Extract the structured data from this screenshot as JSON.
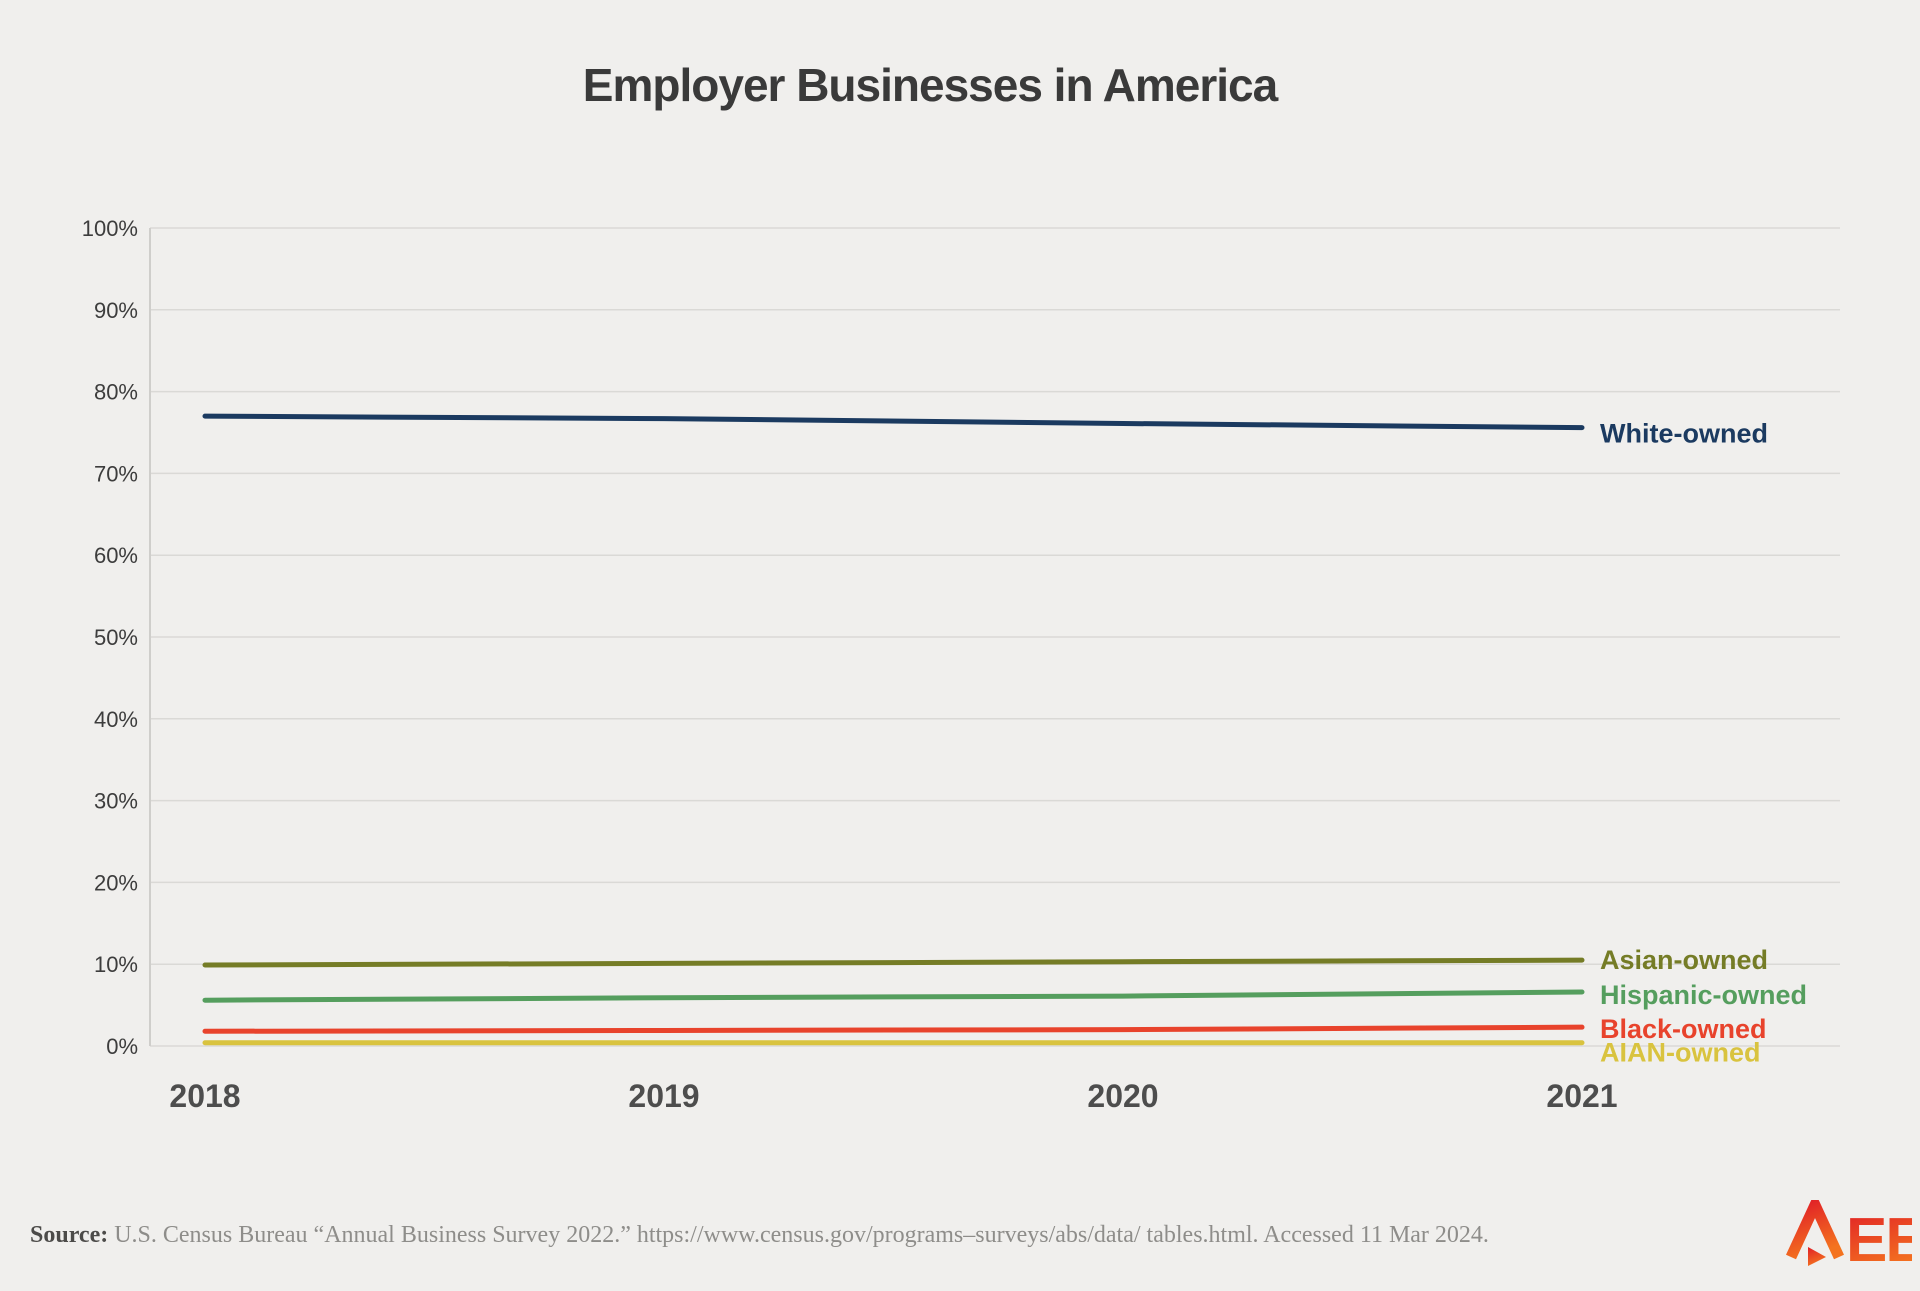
{
  "title": "Employer Businesses in America",
  "source": {
    "label": "Source:",
    "text": " U.S. Census Bureau “Annual Business Survey 2022.” https://www.census.gov/programs–surveys/abs/data/ tables.html. Accessed 11 Mar 2024."
  },
  "logo": {
    "text": "EE",
    "name": "AEE",
    "color_top": "#e01e27",
    "color_bottom": "#f4731f"
  },
  "chart_data": {
    "type": "line",
    "x": [
      2018,
      2019,
      2020,
      2021
    ],
    "x_labels": [
      "2018",
      "2019",
      "2020",
      "2021"
    ],
    "y_ticks": [
      "0%",
      "10%",
      "20%",
      "30%",
      "40%",
      "50%",
      "60%",
      "70%",
      "80%",
      "90%",
      "100%"
    ],
    "ylim": [
      0,
      100
    ],
    "ylabel": "",
    "xlabel": "",
    "grid": true,
    "legend_position": "right-of-line-end",
    "series": [
      {
        "name": "White-owned",
        "color": "#1b3a60",
        "values": [
          77.0,
          76.7,
          76.1,
          75.6
        ]
      },
      {
        "name": "Asian-owned",
        "color": "#757c26",
        "values": [
          9.9,
          10.1,
          10.3,
          10.5
        ]
      },
      {
        "name": "Hispanic-owned",
        "color": "#559e5e",
        "values": [
          5.6,
          5.9,
          6.1,
          6.6
        ]
      },
      {
        "name": "Black-owned",
        "color": "#e8432c",
        "values": [
          1.8,
          1.9,
          2.0,
          2.3
        ]
      },
      {
        "name": "AIAN-owned",
        "color": "#d9c33f",
        "values": [
          0.4,
          0.4,
          0.4,
          0.4
        ]
      }
    ]
  }
}
